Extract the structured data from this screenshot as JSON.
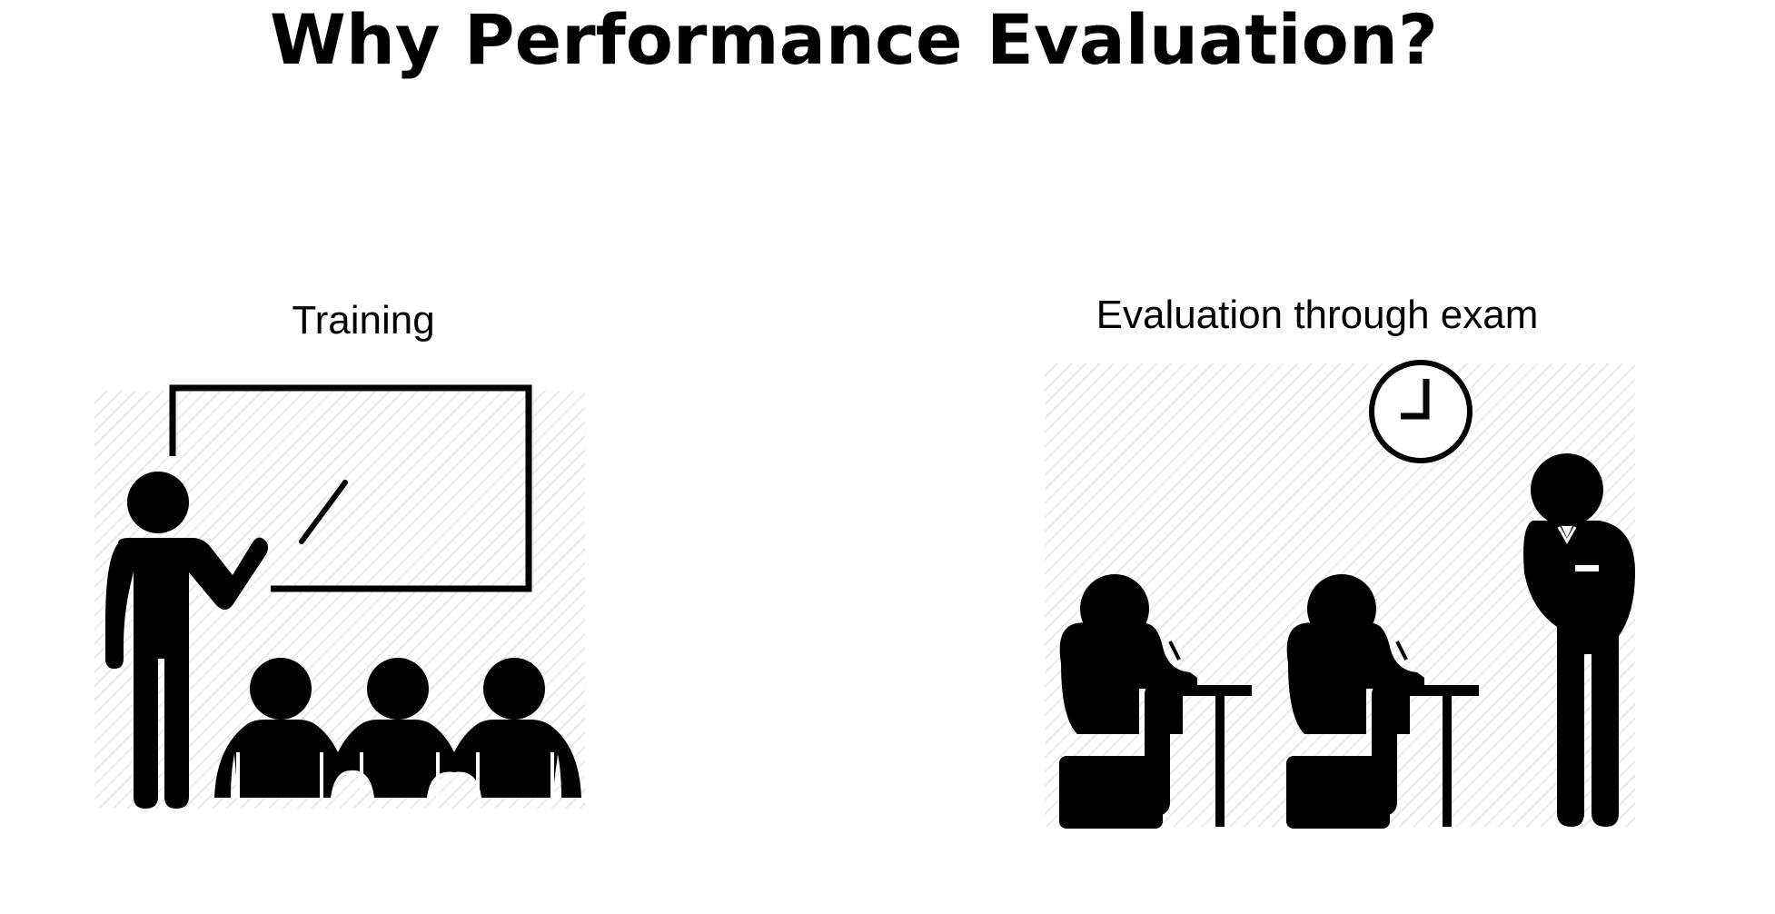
{
  "slide": {
    "title": "Why Performance Evaluation?",
    "sections": [
      {
        "label": "Training",
        "icon": "teacher-classroom-icon"
      },
      {
        "label": "Evaluation through exam",
        "icon": "exam-hall-icon"
      }
    ]
  },
  "colors": {
    "ink": "#000000",
    "hatch": "#ececec",
    "background": "#ffffff"
  }
}
